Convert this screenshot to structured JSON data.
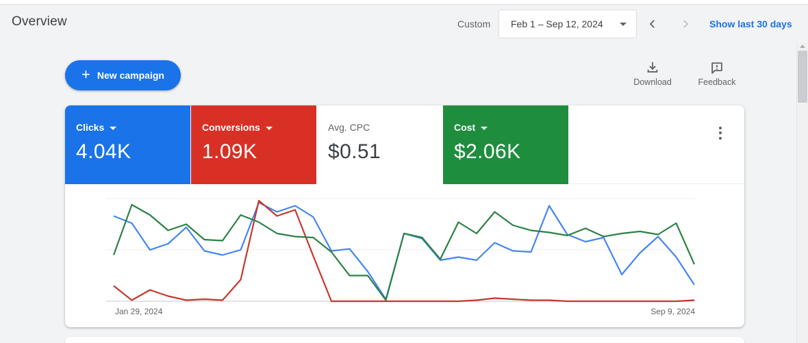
{
  "header": {
    "title": "Overview",
    "range_type_label": "Custom",
    "date_range": "Feb 1 – Sep 12, 2024",
    "show_last_label": "Show last 30 days"
  },
  "toolbar": {
    "new_campaign_label": "New campaign",
    "download_label": "Download",
    "feedback_label": "Feedback"
  },
  "icons": {
    "new_campaign": "plus-icon",
    "date_picker": "caret-down-icon",
    "prev": "chevron-left-icon",
    "next": "chevron-right-icon",
    "download": "download-tray-icon",
    "feedback": "comment-exclamation-icon",
    "card_menu": "kebab-menu-icon",
    "metric_dropdown": "caret-down-icon"
  },
  "metrics": [
    {
      "label": "Clicks",
      "value": "4.04K",
      "bg": "#1a73e8",
      "label_color": "#ffffff",
      "value_color": "#ffffff",
      "dropdown": true
    },
    {
      "label": "Conversions",
      "value": "1.09K",
      "bg": "#d93025",
      "label_color": "#ffffff",
      "value_color": "#ffffff",
      "dropdown": true
    },
    {
      "label": "Avg. CPC",
      "value": "$0.51",
      "bg": "#ffffff",
      "label_color": "#5f6368",
      "value_color": "#3c4043",
      "dropdown": false
    },
    {
      "label": "Cost",
      "value": "$2.06K",
      "bg": "#1e8e3e",
      "label_color": "#ffffff",
      "value_color": "#ffffff",
      "dropdown": true
    }
  ],
  "chart_data": {
    "type": "line",
    "title": "",
    "xlabel": "",
    "ylabel": "",
    "x_axis": {
      "start_label": "Jan 29, 2024",
      "end_label": "Sep 9, 2024",
      "points": 33,
      "interval": "weekly"
    },
    "y_axis": {
      "tick_labels_visible": false,
      "scale": "normalized 0-100 (percent of plot height, no visible ticks)"
    },
    "grid": "3 horizontal gridlines (top, middle, bottom axis)",
    "legend": "none (series colors match metric cards)",
    "series": [
      {
        "name": "Clicks",
        "color": "#4285f4",
        "values": [
          83,
          76,
          50,
          56,
          72,
          49,
          45,
          50,
          96,
          87,
          93,
          82,
          49,
          51,
          29,
          2,
          66,
          61,
          40,
          43,
          40,
          57,
          49,
          48,
          93,
          65,
          58,
          62,
          26,
          47,
          63,
          43,
          16
        ]
      },
      {
        "name": "Conversions",
        "color": "#c5372c",
        "values": [
          15,
          1,
          11,
          5,
          1,
          2,
          1,
          21,
          98,
          83,
          89,
          44,
          0,
          0,
          0,
          0,
          0,
          0,
          0,
          0,
          1,
          3,
          2,
          1,
          1,
          0,
          0,
          0,
          0,
          0,
          0,
          0,
          1
        ]
      },
      {
        "name": "Cost",
        "color": "#2b8144",
        "values": [
          45,
          94,
          84,
          69,
          75,
          60,
          59,
          84,
          77,
          66,
          63,
          62,
          48,
          25,
          25,
          1,
          66,
          62,
          41,
          77,
          66,
          87,
          74,
          69,
          67,
          64,
          71,
          63,
          66,
          68,
          65,
          76,
          36
        ]
      }
    ]
  }
}
